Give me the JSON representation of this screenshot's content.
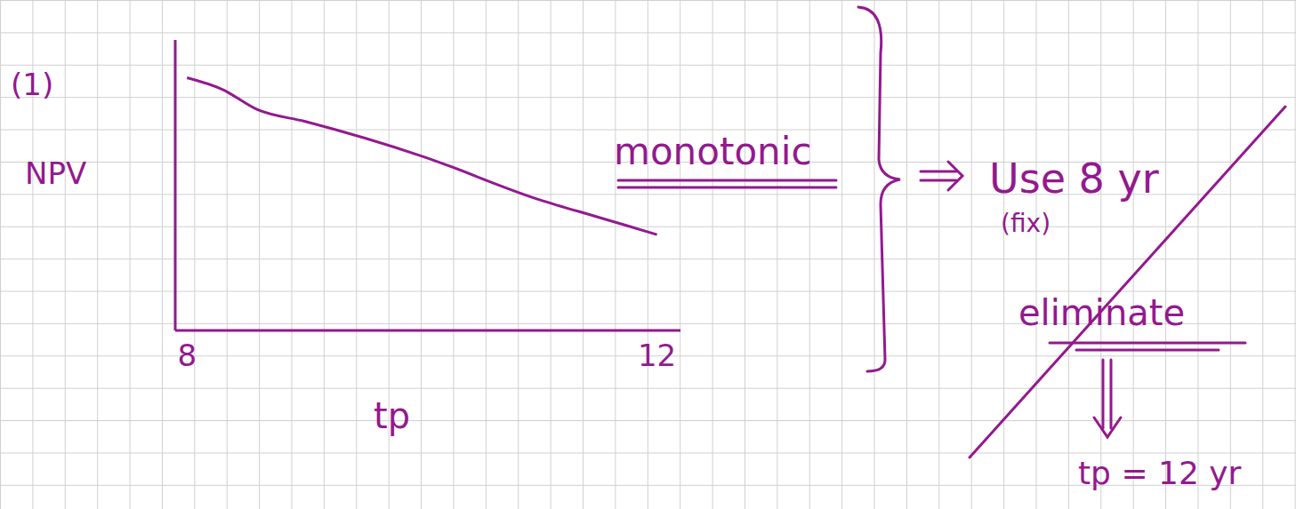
{
  "chart_data": {
    "type": "line",
    "x_label": "tp",
    "y_label": "NPV",
    "x": [
      8,
      8.3,
      8.6,
      9,
      10,
      11,
      11.5,
      12
    ],
    "values": [
      87,
      83,
      76,
      72,
      60,
      45,
      39,
      33
    ],
    "xlim": [
      7.9,
      12.2
    ],
    "xticks": [
      8,
      12
    ],
    "ylim": [
      0,
      100
    ],
    "color": "#93198f",
    "tick_labels": "x",
    "annotations": [
      "(1)",
      "monotonic",
      "Use 8 yr",
      "(fix)",
      "eliminate",
      "tp = 12 yr"
    ]
  }
}
